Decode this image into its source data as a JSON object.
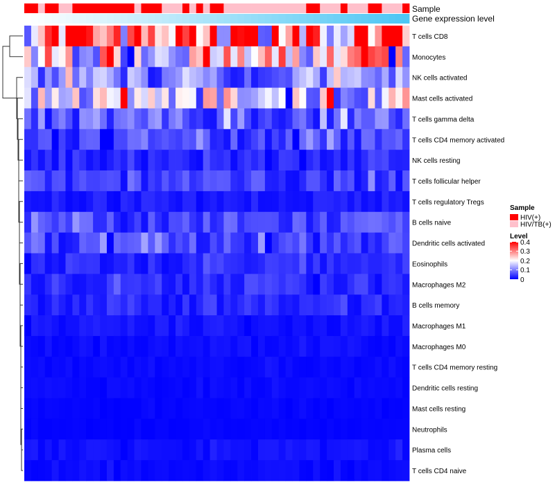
{
  "chart_data": {
    "type": "heatmap",
    "title": "",
    "annotation_tracks": [
      {
        "label": "Sample",
        "kind": "categorical"
      },
      {
        "label": "Gene expression level",
        "kind": "continuous"
      }
    ],
    "sample_groups": [
      "HIV(+)",
      "HIV(+)",
      "HIV/TB(+)",
      "HIV(+)",
      "HIV(+)",
      "HIV/TB(+)",
      "HIV/TB(+)",
      "HIV(+)",
      "HIV(+)",
      "HIV(+)",
      "HIV(+)",
      "HIV(+)",
      "HIV(+)",
      "HIV(+)",
      "HIV(+)",
      "HIV(+)",
      "HIV/TB(+)",
      "HIV(+)",
      "HIV(+)",
      "HIV(+)",
      "HIV/TB(+)",
      "HIV/TB(+)",
      "HIV/TB(+)",
      "HIV(+)",
      "HIV/TB(+)",
      "HIV(+)",
      "HIV/TB(+)",
      "HIV(+)",
      "HIV(+)",
      "HIV/TB(+)",
      "HIV/TB(+)",
      "HIV/TB(+)",
      "HIV/TB(+)",
      "HIV/TB(+)",
      "HIV/TB(+)",
      "HIV/TB(+)",
      "HIV/TB(+)",
      "HIV/TB(+)",
      "HIV/TB(+)",
      "HIV/TB(+)",
      "HIV/TB(+)",
      "HIV(+)",
      "HIV(+)",
      "HIV/TB(+)",
      "HIV/TB(+)",
      "HIV/TB(+)",
      "HIV(+)",
      "HIV/TB(+)",
      "HIV/TB(+)",
      "HIV/TB(+)",
      "HIV(+)",
      "HIV(+)",
      "HIV/TB(+)",
      "HIV/TB(+)",
      "HIV/TB(+)",
      "HIV(+)"
    ],
    "rows": [
      "T cells CD8",
      "Monocytes",
      "NK cells activated",
      "Mast cells activated",
      "T cells gamma delta",
      "T cells CD4 memory activated",
      "NK cells resting",
      "T cells follicular helper",
      "T cells regulatory  Tregs",
      "B cells naive",
      "Dendritic cells activated",
      "Eosinophils",
      "Macrophages M2",
      "B cells memory",
      "Macrophages M1",
      "Macrophages M0",
      "T cells CD4 memory resting",
      "Dendritic cells resting",
      "Mast cells resting",
      "Neutrophils",
      "Plasma cells",
      "T cells CD4 naive"
    ],
    "row_base_levels": [
      0.34,
      0.2,
      0.1,
      0.16,
      0.07,
      0.05,
      0.03,
      0.045,
      0.02,
      0.05,
      0.05,
      0.03,
      0.035,
      0.03,
      0.015,
      0.01,
      0.007,
      0.007,
      0.004,
      0.003,
      0.012,
      0.008
    ],
    "n_columns": 56,
    "scale": {
      "min": 0,
      "max": 0.4,
      "colors": [
        "#0000ff",
        "#ffffff",
        "#ff0000"
      ]
    },
    "legend": {
      "sample_title": "Sample",
      "sample_items": [
        {
          "label": "HIV(+)",
          "color": "#ff0000"
        },
        {
          "label": "HIV/TB(+)",
          "color": "#ffc0cb"
        }
      ],
      "level_title": "Level",
      "level_ticks": [
        "0.4",
        "0.3",
        "0.2",
        "0.1",
        "0"
      ]
    },
    "annotation_gradient": {
      "from": "#ffffff",
      "to": "#4dc6f4"
    }
  }
}
